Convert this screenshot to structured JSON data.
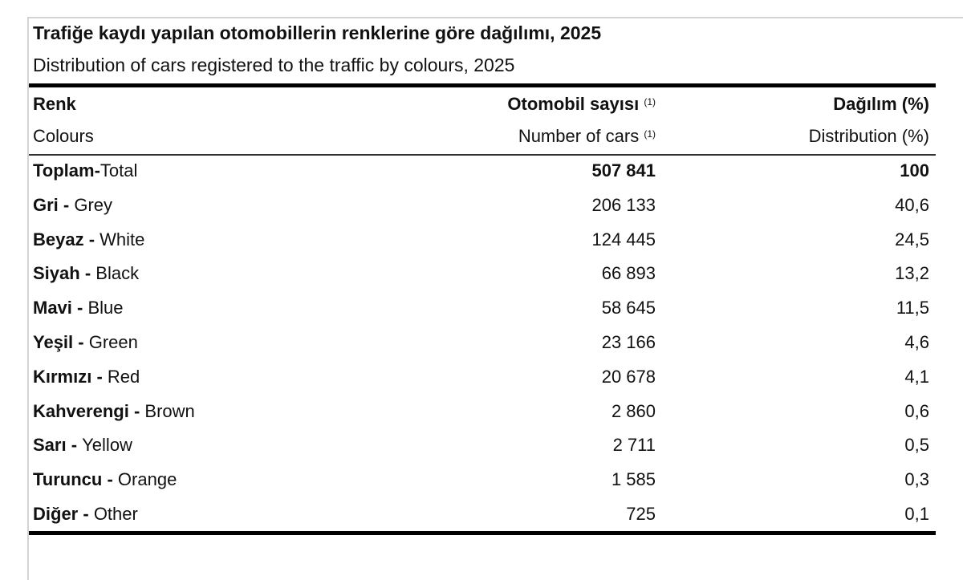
{
  "title": "Trafiğe kaydı yapılan otomobillerin renklerine göre dağılımı, 2025",
  "subtitle": "Distribution of cars registered to the traffic by colours, 2025",
  "header": {
    "col1_tr": "Renk",
    "col1_en": "Colours",
    "col2_tr": "Otomobil sayısı",
    "col2_en": "Number of cars",
    "col2_note": "(1)",
    "col3_tr": "Dağılım (%)",
    "col3_en": "Distribution (%)"
  },
  "rows": [
    {
      "tr": "Toplam",
      "sep": "-",
      "en": "Total",
      "count": "507 841",
      "pct": "100",
      "bold": true
    },
    {
      "tr": "Gri",
      "sep": " - ",
      "en": "Grey",
      "count": "206 133",
      "pct": "40,6"
    },
    {
      "tr": "Beyaz",
      "sep": " - ",
      "en": "White",
      "count": "124 445",
      "pct": "24,5"
    },
    {
      "tr": "Siyah",
      "sep": " - ",
      "en": "Black",
      "count": "66 893",
      "pct": "13,2"
    },
    {
      "tr": "Mavi",
      "sep": " - ",
      "en": "Blue",
      "count": "58 645",
      "pct": "11,5"
    },
    {
      "tr": "Yeşil",
      "sep": " - ",
      "en": "Green",
      "count": "23 166",
      "pct": "4,6"
    },
    {
      "tr": "Kırmızı",
      "sep": " - ",
      "en": "Red",
      "count": "20 678",
      "pct": "4,1"
    },
    {
      "tr": "Kahverengi",
      "sep": " - ",
      "en": "Brown",
      "count": "2 860",
      "pct": "0,6"
    },
    {
      "tr": "Sarı",
      "sep": " - ",
      "en": "Yellow",
      "count": "2 711",
      "pct": "0,5"
    },
    {
      "tr": "Turuncu",
      "sep": " - ",
      "en": "Orange",
      "count": "1 585",
      "pct": "0,3"
    },
    {
      "tr": "Diğer",
      "sep": " - ",
      "en": "Other",
      "count": "725",
      "pct": "0,1"
    }
  ]
}
